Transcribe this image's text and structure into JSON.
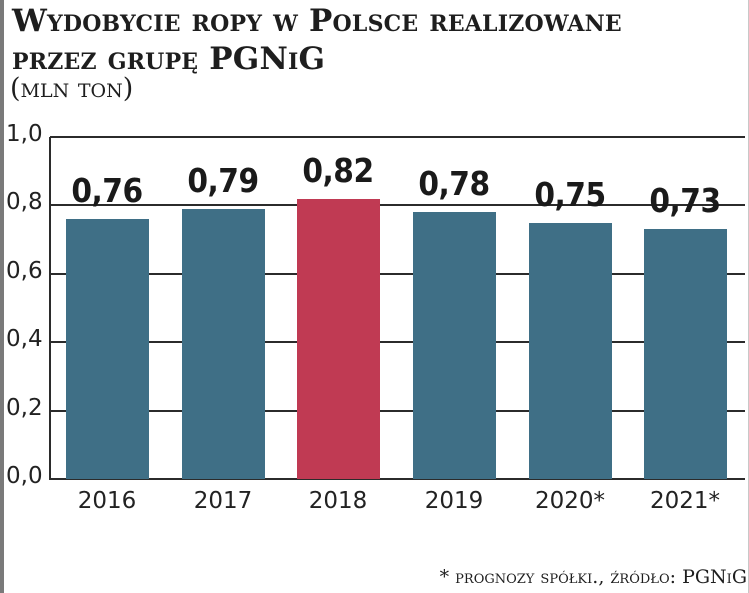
{
  "title": {
    "line1": "Wydobycie ropy w Polsce realizowane",
    "line2": "przez grupę PGNiG",
    "unit": "(mln ton)"
  },
  "footer": "* prognozy spółki., źródło: PGNiG",
  "colors": {
    "bar_default": "#3f6f86",
    "bar_highlight": "#c03a53",
    "grid": "#2b2b2b",
    "text": "#1e1e1e"
  },
  "y_axis": {
    "ticks": [
      "1,0",
      "0,8",
      "0,6",
      "0,4",
      "0,2",
      "0,0"
    ]
  },
  "bars": [
    {
      "year": "2016",
      "value_label": "0,76",
      "value": 0.76,
      "highlight": false
    },
    {
      "year": "2017",
      "value_label": "0,79",
      "value": 0.79,
      "highlight": false
    },
    {
      "year": "2018",
      "value_label": "0,82",
      "value": 0.82,
      "highlight": true
    },
    {
      "year": "2019",
      "value_label": "0,78",
      "value": 0.78,
      "highlight": false
    },
    {
      "year": "2020*",
      "value_label": "0,75",
      "value": 0.75,
      "highlight": false
    },
    {
      "year": "2021*",
      "value_label": "0,73",
      "value": 0.73,
      "highlight": false
    }
  ],
  "chart_data": {
    "type": "bar",
    "title": "Wydobycie ropy w Polsce realizowane przez grupę PGNiG",
    "subtitle": "(mln ton)",
    "categories": [
      "2016",
      "2017",
      "2018",
      "2019",
      "2020*",
      "2021*"
    ],
    "values": [
      0.76,
      0.79,
      0.82,
      0.78,
      0.75,
      0.73
    ],
    "data_labels": [
      "0,76",
      "0,79",
      "0,82",
      "0,78",
      "0,75",
      "0,73"
    ],
    "highlighted_category": "2018",
    "xlabel": "",
    "ylabel": "mln ton",
    "ylim": [
      0,
      1.0
    ],
    "yticks": [
      0.0,
      0.2,
      0.4,
      0.6,
      0.8,
      1.0
    ],
    "grid": true,
    "legend": null,
    "annotation": "* prognozy spółki., źródło: PGNiG"
  }
}
